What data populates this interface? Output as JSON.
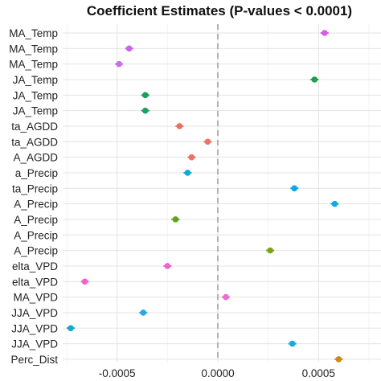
{
  "chart_data": {
    "type": "scatter",
    "title": "Coefficient Estimates (P-values < 0.0001)",
    "xlabel": "",
    "ylabel": "",
    "xlim": [
      -0.00077,
      0.00081
    ],
    "x_ticks": [
      -0.0005,
      0.0,
      0.0005
    ],
    "x_tick_labels": [
      "-0.0005",
      "0.0000",
      "0.0005"
    ],
    "reference_line": 0.0,
    "grid": true,
    "legend": "none",
    "categories": [
      "MA_Temp",
      "MA_Temp",
      "MA_Temp",
      "JA_Temp",
      "JA_Temp",
      "JA_Temp",
      "ta_AGDD",
      "ta_AGDD",
      "A_AGDD",
      "a_Precip",
      "ta_Precip",
      "A_Precip",
      "A_Precip",
      "A_Precip",
      "A_Precip",
      "elta_VPD",
      "elta_VPD",
      "MA_VPD",
      "JJA_VPD",
      "JJA_VPD",
      "JJA_VPD",
      "Perc_Dist"
    ],
    "points": [
      {
        "x": 0.00053,
        "color": "#d35fe3"
      },
      {
        "x": -0.00044,
        "color": "#cd63e6"
      },
      {
        "x": -0.00049,
        "color": "#c96ee8"
      },
      {
        "x": 0.00048,
        "color": "#1f9e4a"
      },
      {
        "x": -0.00036,
        "color": "#16a05a"
      },
      {
        "x": -0.00036,
        "color": "#1aa45c"
      },
      {
        "x": -0.00019,
        "color": "#ec7062"
      },
      {
        "x": -5e-05,
        "color": "#e9765f"
      },
      {
        "x": -0.00013,
        "color": "#e87664"
      },
      {
        "x": -0.00015,
        "color": "#0fa8e0"
      },
      {
        "x": 0.00038,
        "color": "#0aa6e5"
      },
      {
        "x": 0.00058,
        "color": "#14a9e2"
      },
      {
        "x": -0.00021,
        "color": "#5fa520"
      },
      {
        "x": null,
        "color": "#5fa520"
      },
      {
        "x": 0.00026,
        "color": "#7aa31c"
      },
      {
        "x": -0.00025,
        "color": "#f065c8"
      },
      {
        "x": -0.00066,
        "color": "#ee64c4"
      },
      {
        "x": 4e-05,
        "color": "#f26ad0"
      },
      {
        "x": -0.00037,
        "color": "#22ace0"
      },
      {
        "x": -0.00073,
        "color": "#16a9cf"
      },
      {
        "x": 0.00037,
        "color": "#1aa9db"
      },
      {
        "x": 0.0006,
        "color": "#c88a1a"
      }
    ]
  }
}
